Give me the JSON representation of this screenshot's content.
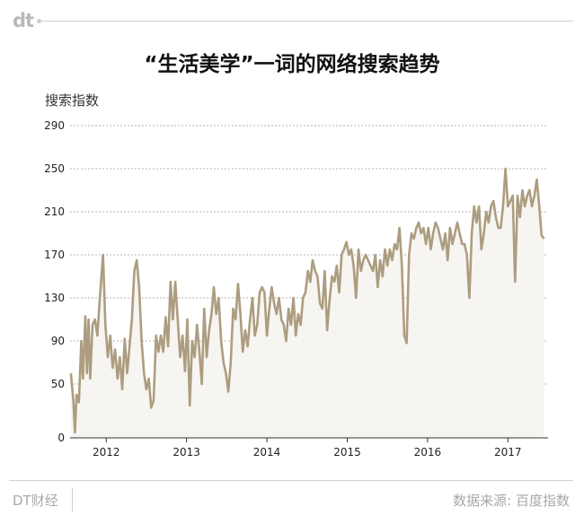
{
  "logo": "dt",
  "footer": {
    "brand": "DT财经",
    "source": "数据来源: 百度指数"
  },
  "colors": {
    "line": "#ad9d80",
    "area": "#f7f5f1",
    "grid": "#9a9a9a",
    "axis": "#333333"
  },
  "chart_data": {
    "type": "line",
    "title": "“生活美学”一词的网络搜索趋势",
    "ylabel": "搜索指数",
    "xlabel": "",
    "ylim": [
      0,
      290
    ],
    "yticks": [
      0,
      50,
      90,
      130,
      170,
      210,
      250,
      290
    ],
    "xlim": [
      2011.55,
      2017.5
    ],
    "xticks": [
      {
        "value": 2012.0,
        "label": "2012"
      },
      {
        "value": 2013.0,
        "label": "2013"
      },
      {
        "value": 2014.0,
        "label": "2014"
      },
      {
        "value": 2015.0,
        "label": "2015"
      },
      {
        "value": 2016.0,
        "label": "2016"
      },
      {
        "value": 2017.0,
        "label": "2017"
      }
    ],
    "grid": true,
    "legend": "none",
    "series": [
      {
        "values": [
          [
            2011.56,
            60
          ],
          [
            2011.59,
            35
          ],
          [
            2011.61,
            5
          ],
          [
            2011.63,
            40
          ],
          [
            2011.66,
            33
          ],
          [
            2011.69,
            90
          ],
          [
            2011.71,
            55
          ],
          [
            2011.74,
            113
          ],
          [
            2011.76,
            60
          ],
          [
            2011.78,
            110
          ],
          [
            2011.8,
            55
          ],
          [
            2011.83,
            105
          ],
          [
            2011.86,
            110
          ],
          [
            2011.89,
            95
          ],
          [
            2011.92,
            130
          ],
          [
            2011.96,
            170
          ],
          [
            2011.99,
            105
          ],
          [
            2012.02,
            75
          ],
          [
            2012.05,
            95
          ],
          [
            2012.08,
            65
          ],
          [
            2012.11,
            82
          ],
          [
            2012.14,
            55
          ],
          [
            2012.17,
            75
          ],
          [
            2012.2,
            45
          ],
          [
            2012.23,
            92
          ],
          [
            2012.26,
            60
          ],
          [
            2012.29,
            85
          ],
          [
            2012.32,
            110
          ],
          [
            2012.35,
            155
          ],
          [
            2012.38,
            165
          ],
          [
            2012.41,
            140
          ],
          [
            2012.44,
            90
          ],
          [
            2012.47,
            60
          ],
          [
            2012.5,
            45
          ],
          [
            2012.53,
            55
          ],
          [
            2012.56,
            28
          ],
          [
            2012.59,
            35
          ],
          [
            2012.62,
            95
          ],
          [
            2012.65,
            80
          ],
          [
            2012.68,
            95
          ],
          [
            2012.71,
            80
          ],
          [
            2012.74,
            112
          ],
          [
            2012.77,
            85
          ],
          [
            2012.8,
            145
          ],
          [
            2012.83,
            110
          ],
          [
            2012.86,
            145
          ],
          [
            2012.89,
            110
          ],
          [
            2012.92,
            75
          ],
          [
            2012.95,
            95
          ],
          [
            2012.98,
            62
          ],
          [
            2013.01,
            110
          ],
          [
            2013.04,
            30
          ],
          [
            2013.07,
            90
          ],
          [
            2013.1,
            75
          ],
          [
            2013.13,
            105
          ],
          [
            2013.16,
            80
          ],
          [
            2013.19,
            50
          ],
          [
            2013.22,
            120
          ],
          [
            2013.25,
            75
          ],
          [
            2013.28,
            100
          ],
          [
            2013.31,
            115
          ],
          [
            2013.34,
            140
          ],
          [
            2013.37,
            115
          ],
          [
            2013.4,
            130
          ],
          [
            2013.43,
            90
          ],
          [
            2013.46,
            70
          ],
          [
            2013.49,
            60
          ],
          [
            2013.52,
            43
          ],
          [
            2013.55,
            70
          ],
          [
            2013.58,
            120
          ],
          [
            2013.61,
            110
          ],
          [
            2013.64,
            143
          ],
          [
            2013.67,
            115
          ],
          [
            2013.7,
            80
          ],
          [
            2013.73,
            100
          ],
          [
            2013.76,
            85
          ],
          [
            2013.79,
            110
          ],
          [
            2013.82,
            130
          ],
          [
            2013.85,
            95
          ],
          [
            2013.88,
            105
          ],
          [
            2013.91,
            135
          ],
          [
            2013.94,
            140
          ],
          [
            2013.97,
            135
          ],
          [
            2014.0,
            95
          ],
          [
            2014.03,
            120
          ],
          [
            2014.06,
            140
          ],
          [
            2014.09,
            125
          ],
          [
            2014.12,
            115
          ],
          [
            2014.15,
            130
          ],
          [
            2014.18,
            110
          ],
          [
            2014.21,
            105
          ],
          [
            2014.24,
            90
          ],
          [
            2014.27,
            120
          ],
          [
            2014.3,
            105
          ],
          [
            2014.33,
            130
          ],
          [
            2014.36,
            95
          ],
          [
            2014.39,
            115
          ],
          [
            2014.42,
            105
          ],
          [
            2014.45,
            130
          ],
          [
            2014.48,
            135
          ],
          [
            2014.51,
            155
          ],
          [
            2014.54,
            145
          ],
          [
            2014.57,
            165
          ],
          [
            2014.6,
            155
          ],
          [
            2014.63,
            150
          ],
          [
            2014.66,
            125
          ],
          [
            2014.69,
            120
          ],
          [
            2014.72,
            155
          ],
          [
            2014.75,
            100
          ],
          [
            2014.78,
            128
          ],
          [
            2014.81,
            150
          ],
          [
            2014.84,
            145
          ],
          [
            2014.87,
            160
          ],
          [
            2014.9,
            135
          ],
          [
            2014.93,
            170
          ],
          [
            2014.96,
            175
          ],
          [
            2014.99,
            182
          ],
          [
            2015.02,
            170
          ],
          [
            2015.05,
            175
          ],
          [
            2015.08,
            160
          ],
          [
            2015.11,
            130
          ],
          [
            2015.14,
            175
          ],
          [
            2015.17,
            155
          ],
          [
            2015.2,
            165
          ],
          [
            2015.23,
            170
          ],
          [
            2015.26,
            165
          ],
          [
            2015.29,
            160
          ],
          [
            2015.32,
            155
          ],
          [
            2015.35,
            170
          ],
          [
            2015.38,
            140
          ],
          [
            2015.41,
            165
          ],
          [
            2015.44,
            150
          ],
          [
            2015.47,
            175
          ],
          [
            2015.5,
            160
          ],
          [
            2015.53,
            175
          ],
          [
            2015.56,
            165
          ],
          [
            2015.59,
            180
          ],
          [
            2015.62,
            175
          ],
          [
            2015.65,
            195
          ],
          [
            2015.68,
            160
          ],
          [
            2015.71,
            95
          ],
          [
            2015.74,
            88
          ],
          [
            2015.77,
            170
          ],
          [
            2015.8,
            190
          ],
          [
            2015.83,
            185
          ],
          [
            2015.86,
            195
          ],
          [
            2015.89,
            200
          ],
          [
            2015.92,
            190
          ],
          [
            2015.95,
            195
          ],
          [
            2015.98,
            180
          ],
          [
            2016.01,
            195
          ],
          [
            2016.04,
            175
          ],
          [
            2016.07,
            190
          ],
          [
            2016.1,
            200
          ],
          [
            2016.13,
            195
          ],
          [
            2016.16,
            185
          ],
          [
            2016.19,
            175
          ],
          [
            2016.22,
            190
          ],
          [
            2016.25,
            165
          ],
          [
            2016.28,
            195
          ],
          [
            2016.31,
            180
          ],
          [
            2016.34,
            190
          ],
          [
            2016.37,
            200
          ],
          [
            2016.4,
            190
          ],
          [
            2016.43,
            180
          ],
          [
            2016.46,
            180
          ],
          [
            2016.49,
            170
          ],
          [
            2016.52,
            130
          ],
          [
            2016.55,
            190
          ],
          [
            2016.58,
            215
          ],
          [
            2016.61,
            200
          ],
          [
            2016.64,
            215
          ],
          [
            2016.67,
            175
          ],
          [
            2016.7,
            190
          ],
          [
            2016.73,
            210
          ],
          [
            2016.76,
            200
          ],
          [
            2016.79,
            215
          ],
          [
            2016.82,
            220
          ],
          [
            2016.85,
            205
          ],
          [
            2016.88,
            195
          ],
          [
            2016.91,
            195
          ],
          [
            2016.94,
            215
          ],
          [
            2016.97,
            250
          ],
          [
            2017.0,
            215
          ],
          [
            2017.03,
            220
          ],
          [
            2017.06,
            225
          ],
          [
            2017.09,
            145
          ],
          [
            2017.12,
            225
          ],
          [
            2017.15,
            205
          ],
          [
            2017.18,
            230
          ],
          [
            2017.21,
            215
          ],
          [
            2017.24,
            225
          ],
          [
            2017.27,
            230
          ],
          [
            2017.3,
            215
          ],
          [
            2017.33,
            225
          ],
          [
            2017.36,
            240
          ],
          [
            2017.39,
            215
          ],
          [
            2017.42,
            188
          ],
          [
            2017.45,
            185
          ]
        ]
      }
    ]
  }
}
